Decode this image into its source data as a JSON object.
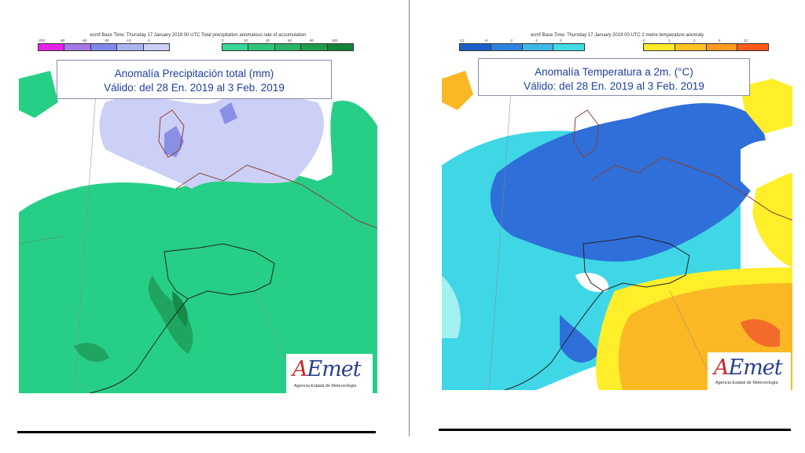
{
  "left_panel": {
    "header_text": "ecmf  Base Time: Thursday 17 January 2019 00 UTC  Total precipitation anomalous rate of accumulation",
    "neg_colorbar": {
      "colors": [
        "#e822e8",
        "#a577e8",
        "#7f87ea",
        "#a9b4f2",
        "#cccff6"
      ],
      "ticks": [
        "-200",
        "-80",
        "-60",
        "-30",
        "-10",
        "0"
      ]
    },
    "pos_colorbar": {
      "colors": [
        "#39d69a",
        "#2fc47a",
        "#27b463",
        "#1f9c4a",
        "#15823a"
      ],
      "ticks": [
        "0",
        "10",
        "30",
        "60",
        "80",
        "200"
      ]
    },
    "title_line1": "Anomalía Precipitación total (mm)",
    "title_line2": "Válido: del 28 En. 2019 al 3 Feb. 2019"
  },
  "right_panel": {
    "header_text": "ecmf  Base Time: Thursday 17 January 2019 00 UTC  2 metre temperature anomaly",
    "neg_colorbar": {
      "colors": [
        "#1f5fc8",
        "#2f82e0",
        "#3cb9e6",
        "#43dbe6"
      ],
      "ticks": [
        "-12",
        "-8",
        "-2",
        "-1",
        "0"
      ]
    },
    "pos_colorbar": {
      "colors": [
        "#ffea2a",
        "#ffc321",
        "#ff9a1e",
        "#ff5a1a"
      ],
      "ticks": [
        "0",
        "1",
        "2",
        "8",
        "12"
      ]
    },
    "title_line1": "Anomalía Temperatura a 2m. (°C)",
    "title_line2": "Válido: del 28 En. 2019 al 3 Feb. 2019"
  },
  "logo": {
    "wordmark_A": "A",
    "wordmark_rest": "Emet",
    "subtitle": "Agencia Estatal de Meteorología"
  },
  "colors": {
    "precip_main": "#27cf86",
    "precip_dark": "#1fa560",
    "precip_darker": "#168a49",
    "precip_dry": "#cccff6",
    "precip_very_dry": "#8a8fe6",
    "temp_cold": "#2f6fd9",
    "temp_cool": "#3fd7e6",
    "temp_light": "#a2f0f0",
    "temp_warm": "#fbb825",
    "temp_hot": "#f26b2a",
    "temp_yellow": "#ffee2a",
    "coast": "#8c3f30",
    "border": "#222222",
    "title_text": "#1f3fa0"
  }
}
